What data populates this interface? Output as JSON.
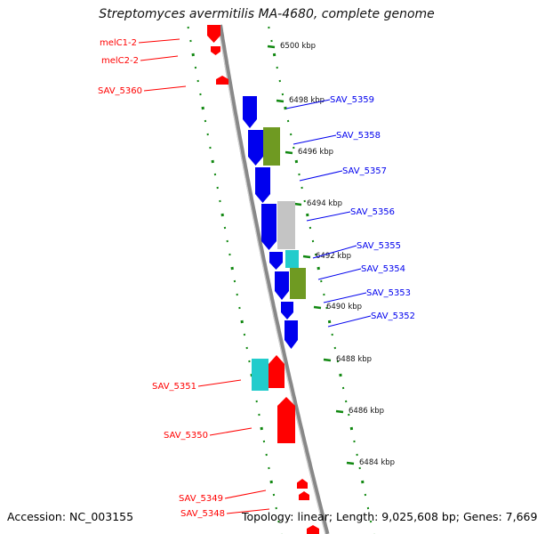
{
  "title": "Streptomyces avermitilis MA-4680, complete genome",
  "footer": {
    "accession": "Accession: NC_003155",
    "summary": "Topology: linear; Length: 9,025,608 bp; Genes: 7,669"
  },
  "colors": {
    "forward_gene": "#0000ee",
    "reverse_gene": "#ff0000",
    "ruler_ticks": "#118811",
    "backbone": "#888888",
    "gene_gray": "#c4c4c4",
    "gene_cyan": "#22cccc",
    "gene_olive": "#6f9a22"
  },
  "ruler": [
    "6500 kbp",
    "6498 kbp",
    "6496 kbp",
    "6494 kbp",
    "6492 kbp",
    "6490 kbp",
    "6488 kbp",
    "6486 kbp",
    "6484 kbp"
  ],
  "right_labels": [
    "SAV_5359",
    "SAV_5358",
    "SAV_5357",
    "SAV_5356",
    "SAV_5355",
    "SAV_5354",
    "SAV_5353",
    "SAV_5352"
  ],
  "left_labels": [
    "melC1-2",
    "melC2-2",
    "SAV_5360",
    "SAV_5351",
    "SAV_5350",
    "SAV_5349",
    "SAV_5348"
  ]
}
